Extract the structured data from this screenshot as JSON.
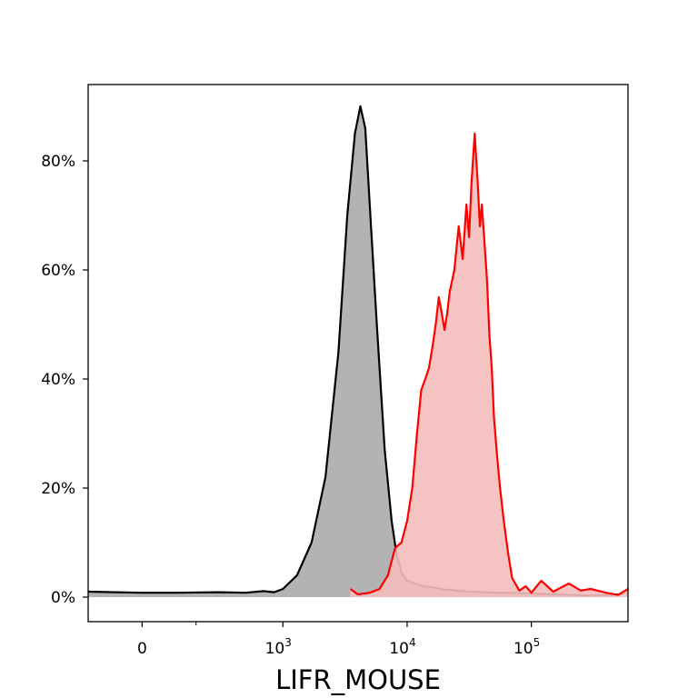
{
  "chart_data": {
    "type": "area",
    "xlabel": "LIFR_MOUSE",
    "ylabel": "",
    "x_scale": "biexponential",
    "xlim": [
      -200,
      600000
    ],
    "ylim": [
      -0.045,
      0.94
    ],
    "x_ticks": [
      {
        "value": 0,
        "base": "0",
        "exp": ""
      },
      {
        "value": 1000,
        "base": "10",
        "exp": "3"
      },
      {
        "value": 10000,
        "base": "10",
        "exp": "4"
      },
      {
        "value": 100000,
        "base": "10",
        "exp": "5"
      }
    ],
    "x_minor_ticks": [
      200
    ],
    "y_ticks": [
      {
        "value": 0,
        "label": "0%"
      },
      {
        "value": 0.2,
        "label": "20%"
      },
      {
        "value": 0.4,
        "label": "40%"
      },
      {
        "value": 0.6,
        "label": "60%"
      },
      {
        "value": 0.8,
        "label": "80%"
      }
    ],
    "series": [
      {
        "color": "#000000",
        "fill": "#b3b3b3",
        "x": [
          -200,
          -100,
          0,
          120,
          300,
          500,
          700,
          850,
          1000,
          1300,
          1700,
          2200,
          2800,
          3300,
          3800,
          4200,
          4600,
          5000,
          5700,
          6600,
          7500,
          8200,
          9000,
          10000,
          11500,
          13500,
          16000,
          20000,
          25000,
          32000,
          42000,
          55000,
          70000,
          90000,
          120000,
          160000,
          220000,
          300000,
          400000,
          520000
        ],
        "y": [
          0.01,
          0.009,
          0.008,
          0.008,
          0.009,
          0.008,
          0.011,
          0.009,
          0.015,
          0.04,
          0.1,
          0.22,
          0.45,
          0.7,
          0.85,
          0.9,
          0.86,
          0.72,
          0.5,
          0.27,
          0.14,
          0.08,
          0.045,
          0.03,
          0.025,
          0.02,
          0.018,
          0.014,
          0.012,
          0.01,
          0.009,
          0.008,
          0.008,
          0.007,
          0.006,
          0.005,
          0.004,
          0.003,
          0.004,
          0.005
        ]
      },
      {
        "color": "#ff0000",
        "fill": "#f5bcbc",
        "x": [
          3500,
          4000,
          5000,
          6000,
          7000,
          8000,
          9000,
          10000,
          11000,
          12000,
          13000,
          14000,
          15000,
          16000,
          17000,
          18000,
          19000,
          20000,
          21000,
          22000,
          23000,
          24000,
          26000,
          28000,
          30000,
          31500,
          33000,
          35000,
          37000,
          38500,
          40000,
          42000,
          44000,
          46000,
          48000,
          50000,
          53000,
          56000,
          60000,
          65000,
          70000,
          80000,
          90000,
          100000,
          120000,
          150000,
          200000,
          250000,
          300000,
          400000,
          500000,
          600000
        ],
        "y": [
          0.015,
          0.005,
          0.008,
          0.015,
          0.04,
          0.09,
          0.1,
          0.14,
          0.2,
          0.3,
          0.38,
          0.4,
          0.42,
          0.46,
          0.5,
          0.55,
          0.52,
          0.49,
          0.52,
          0.56,
          0.58,
          0.6,
          0.68,
          0.62,
          0.72,
          0.66,
          0.76,
          0.85,
          0.76,
          0.68,
          0.72,
          0.65,
          0.58,
          0.48,
          0.42,
          0.33,
          0.26,
          0.2,
          0.14,
          0.08,
          0.035,
          0.012,
          0.02,
          0.008,
          0.03,
          0.01,
          0.025,
          0.012,
          0.015,
          0.008,
          0.004,
          0.015
        ]
      }
    ]
  }
}
